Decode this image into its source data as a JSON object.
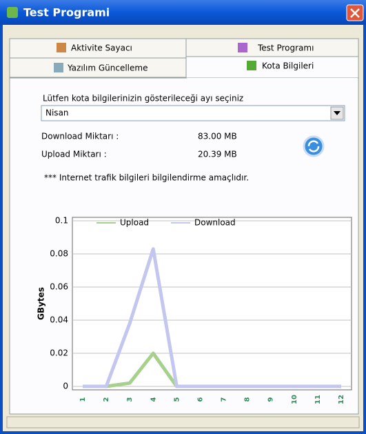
{
  "window": {
    "title": "Test Programi"
  },
  "tabs": [
    "Aktivite Sayacı",
    "Test Programı",
    "Yazılım Güncelleme",
    "Kota Bilgileri"
  ],
  "form": {
    "prompt": "Lütfen kota bilgilerinizin gösterileceği ayı seçiniz",
    "month": "Nisan",
    "download_label": "Download Miktarı :",
    "download_value": "83.00 MB",
    "upload_label": "Upload Miktarı :",
    "upload_value": "20.39 MB",
    "note": "*** Internet trafik bilgileri bilgilendirme amaçlıdır."
  },
  "chart_data": {
    "type": "line",
    "y_label": "GBytes",
    "categories": [
      "1",
      "2",
      "3",
      "4",
      "5",
      "6",
      "7",
      "8",
      "9",
      "10",
      "11",
      "12"
    ],
    "series": [
      {
        "name": "Upload",
        "color": "#a8d08d",
        "values": [
          0,
          0,
          0.002,
          0.02,
          0,
          0,
          0,
          0,
          0,
          0,
          0,
          0
        ]
      },
      {
        "name": "Download",
        "color": "#c3c6ee",
        "values": [
          0,
          0,
          0.038,
          0.083,
          0,
          0,
          0,
          0,
          0,
          0,
          0,
          0
        ]
      }
    ],
    "ylim": [
      0,
      0.1
    ],
    "yticks": [
      0,
      0.02,
      0.04,
      0.06,
      0.08,
      0.1
    ],
    "grid": true
  }
}
